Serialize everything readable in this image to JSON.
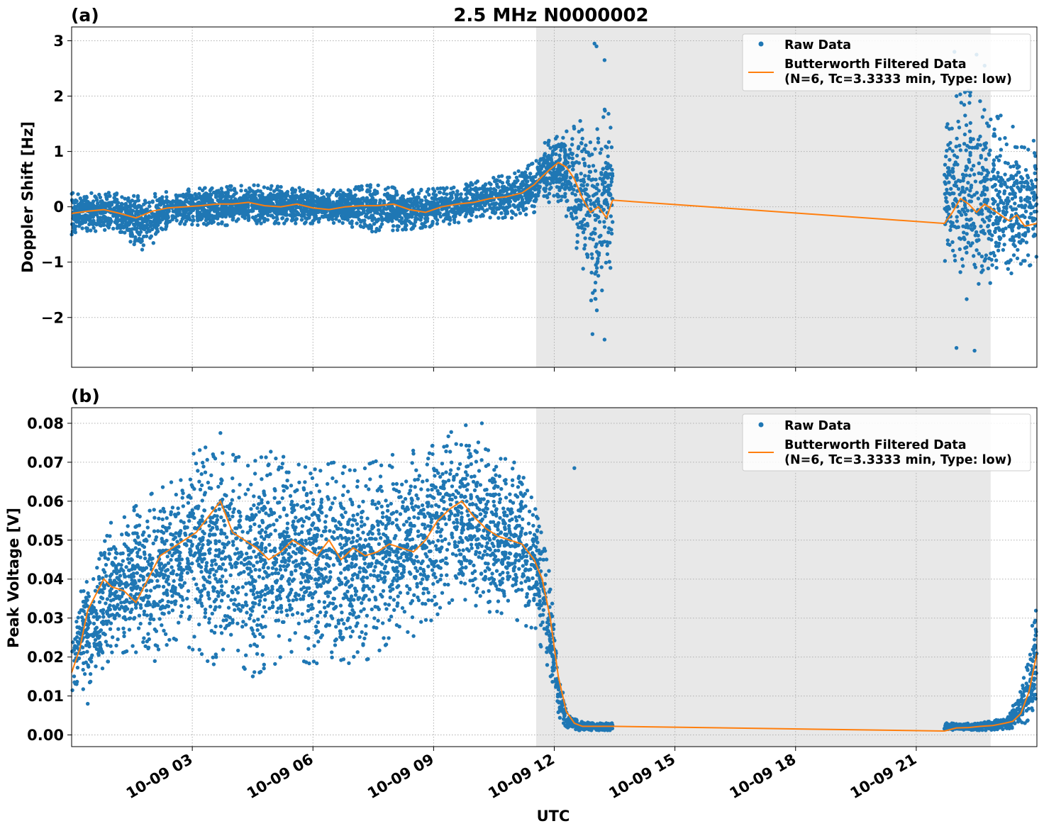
{
  "figure": {
    "title": "2.5 MHz N0000002",
    "xlabel": "UTC",
    "x_tick_labels": [
      "10-09 03",
      "10-09 06",
      "10-09 09",
      "10-09 12",
      "10-09 15",
      "10-09 18",
      "10-09 21"
    ]
  },
  "colors": {
    "raw": "#1f77b4",
    "filtered": "#ff7f0e",
    "shade": "#e8e8e8",
    "grid": "#b0b0b0"
  },
  "legend": {
    "raw_label": "Raw Data",
    "filtered_label_line1": "Butterworth Filtered Data",
    "filtered_label_line2": "(N=6, Tc=3.3333 min, Type: low)",
    "placement": "top-right"
  },
  "chart_data": [
    {
      "type": "scatter",
      "panel_label": "(a)",
      "ylabel": "Doppler Shift [Hz]",
      "xlim": [
        0.0,
        24.0
      ],
      "ylim": [
        -2.9,
        3.25
      ],
      "yticks": [
        -2,
        -1,
        0,
        1,
        2,
        3
      ],
      "ytick_labels": [
        "−2",
        "−1",
        "0",
        "1",
        "2",
        "3"
      ],
      "xticks": [
        3,
        6,
        9,
        12,
        15,
        18,
        21
      ],
      "grid": true,
      "shaded_span": [
        11.55,
        22.85
      ],
      "data_gap": [
        13.45,
        21.7
      ],
      "series": [
        {
          "name": "Raw Data",
          "kind": "points",
          "envelope": {
            "x": [
              0.0,
              1.0,
              1.8,
              2.6,
              3.5,
              4.5,
              5.5,
              6.5,
              7.5,
              8.5,
              9.5,
              10.3,
              11.0,
              11.5,
              11.8,
              12.2,
              12.5,
              12.8,
              13.0,
              13.2,
              13.45,
              21.7,
              22.0,
              22.3,
              22.6,
              22.9,
              23.3,
              23.7,
              24.0
            ],
            "lower": [
              -0.5,
              -0.4,
              -0.8,
              -0.3,
              -0.35,
              -0.3,
              -0.3,
              -0.3,
              -0.45,
              -0.4,
              -0.3,
              -0.2,
              -0.2,
              -0.1,
              0.1,
              0.0,
              -0.6,
              -1.4,
              -1.9,
              -1.8,
              -1.0,
              -1.2,
              -1.5,
              -1.7,
              -1.6,
              -1.5,
              -1.3,
              -1.1,
              -1.0
            ],
            "upper": [
              0.3,
              0.25,
              0.2,
              0.3,
              0.35,
              0.4,
              0.35,
              0.3,
              0.4,
              0.3,
              0.35,
              0.5,
              0.6,
              0.8,
              1.2,
              1.3,
              1.5,
              1.7,
              1.9,
              1.8,
              1.6,
              1.8,
              2.0,
              2.1,
              1.9,
              1.8,
              1.5,
              1.3,
              1.2
            ]
          },
          "outliers": [
            [
              13.0,
              2.95
            ],
            [
              13.05,
              2.9
            ],
            [
              13.25,
              2.65
            ],
            [
              12.95,
              -2.3
            ],
            [
              13.25,
              -2.4
            ],
            [
              22.0,
              -2.55
            ],
            [
              22.45,
              -2.6
            ],
            [
              22.7,
              2.55
            ],
            [
              21.95,
              2.8
            ],
            [
              22.5,
              2.75
            ]
          ]
        },
        {
          "name": "Butterworth Filtered Data",
          "kind": "line",
          "x": [
            0.0,
            0.4,
            0.8,
            1.2,
            1.6,
            2.0,
            2.4,
            2.8,
            3.2,
            3.6,
            4.0,
            4.4,
            4.8,
            5.2,
            5.6,
            6.0,
            6.4,
            6.8,
            7.2,
            7.6,
            8.0,
            8.4,
            8.8,
            9.2,
            9.6,
            10.0,
            10.4,
            10.8,
            11.2,
            11.5,
            11.7,
            11.9,
            12.1,
            12.3,
            12.5,
            12.7,
            12.9,
            13.1,
            13.3,
            13.45,
            21.7,
            21.9,
            22.1,
            22.3,
            22.5,
            22.7,
            22.9,
            23.1,
            23.3,
            23.5,
            23.7,
            24.0
          ],
          "y": [
            -0.12,
            -0.08,
            -0.05,
            -0.12,
            -0.2,
            -0.08,
            -0.02,
            0.0,
            0.02,
            0.05,
            0.05,
            0.08,
            0.02,
            0.0,
            0.05,
            -0.02,
            -0.05,
            0.0,
            0.02,
            0.02,
            0.05,
            -0.05,
            -0.1,
            0.0,
            0.05,
            0.08,
            0.15,
            0.18,
            0.25,
            0.4,
            0.55,
            0.68,
            0.8,
            0.72,
            0.5,
            0.15,
            -0.1,
            0.0,
            -0.2,
            0.12,
            -0.3,
            -0.1,
            0.15,
            0.05,
            -0.1,
            0.05,
            -0.05,
            -0.15,
            -0.25,
            -0.15,
            -0.35,
            -0.3
          ]
        }
      ]
    },
    {
      "type": "scatter",
      "panel_label": "(b)",
      "ylabel": "Peak Voltage [V]",
      "xlim": [
        0.0,
        24.0
      ],
      "ylim": [
        -0.003,
        0.084
      ],
      "yticks": [
        0.0,
        0.01,
        0.02,
        0.03,
        0.04,
        0.05,
        0.06,
        0.07,
        0.08
      ],
      "ytick_labels": [
        "0.00",
        "0.01",
        "0.02",
        "0.03",
        "0.04",
        "0.05",
        "0.06",
        "0.07",
        "0.08"
      ],
      "xticks": [
        3,
        6,
        9,
        12,
        15,
        18,
        21
      ],
      "grid": true,
      "shaded_span": [
        11.55,
        22.85
      ],
      "data_gap": [
        13.45,
        21.7
      ],
      "series": [
        {
          "name": "Raw Data",
          "kind": "points",
          "envelope": {
            "x": [
              0.0,
              0.3,
              0.6,
              1.0,
              1.5,
              2.0,
              2.5,
              3.0,
              3.5,
              4.0,
              4.5,
              5.0,
              5.5,
              6.0,
              6.5,
              7.0,
              7.5,
              8.0,
              8.5,
              9.0,
              9.5,
              10.0,
              10.5,
              11.0,
              11.3,
              11.6,
              11.9,
              12.1,
              12.3,
              12.6,
              13.0,
              13.45,
              21.7,
              22.3,
              22.9,
              23.3,
              23.6,
              23.8,
              24.0
            ],
            "lower": [
              0.006,
              0.012,
              0.015,
              0.02,
              0.022,
              0.018,
              0.025,
              0.022,
              0.018,
              0.02,
              0.015,
              0.018,
              0.02,
              0.018,
              0.02,
              0.018,
              0.02,
              0.025,
              0.025,
              0.03,
              0.035,
              0.03,
              0.032,
              0.03,
              0.028,
              0.025,
              0.015,
              0.005,
              0.002,
              0.0012,
              0.0012,
              0.0012,
              0.0012,
              0.0012,
              0.0012,
              0.0015,
              0.002,
              0.004,
              0.008
            ],
            "upper": [
              0.03,
              0.04,
              0.045,
              0.055,
              0.058,
              0.062,
              0.065,
              0.072,
              0.075,
              0.072,
              0.07,
              0.073,
              0.07,
              0.068,
              0.07,
              0.068,
              0.07,
              0.072,
              0.073,
              0.076,
              0.078,
              0.076,
              0.072,
              0.07,
              0.065,
              0.06,
              0.04,
              0.02,
              0.006,
              0.0035,
              0.003,
              0.003,
              0.003,
              0.003,
              0.0035,
              0.005,
              0.012,
              0.022,
              0.036
            ]
          },
          "outliers": [
            [
              9.8,
              0.0795
            ],
            [
              10.2,
              0.08
            ],
            [
              3.7,
              0.0775
            ],
            [
              0.4,
              0.008
            ],
            [
              12.5,
              0.0685
            ]
          ]
        },
        {
          "name": "Butterworth Filtered Data",
          "kind": "line",
          "x": [
            0.0,
            0.2,
            0.4,
            0.6,
            0.8,
            1.0,
            1.3,
            1.6,
            1.9,
            2.2,
            2.5,
            2.8,
            3.1,
            3.4,
            3.7,
            4.0,
            4.3,
            4.6,
            4.9,
            5.2,
            5.5,
            5.8,
            6.1,
            6.4,
            6.7,
            7.0,
            7.3,
            7.6,
            7.9,
            8.2,
            8.5,
            8.8,
            9.1,
            9.4,
            9.7,
            10.0,
            10.3,
            10.6,
            10.9,
            11.2,
            11.5,
            11.7,
            11.9,
            12.1,
            12.3,
            12.5,
            12.7,
            13.0,
            13.45,
            21.7,
            22.0,
            22.3,
            22.6,
            22.9,
            23.2,
            23.4,
            23.6,
            23.8,
            24.0
          ],
          "y": [
            0.016,
            0.022,
            0.032,
            0.036,
            0.04,
            0.038,
            0.037,
            0.034,
            0.04,
            0.046,
            0.048,
            0.05,
            0.052,
            0.056,
            0.06,
            0.052,
            0.05,
            0.048,
            0.045,
            0.047,
            0.05,
            0.048,
            0.046,
            0.05,
            0.045,
            0.048,
            0.046,
            0.047,
            0.049,
            0.048,
            0.047,
            0.05,
            0.055,
            0.058,
            0.06,
            0.056,
            0.053,
            0.051,
            0.05,
            0.049,
            0.045,
            0.04,
            0.03,
            0.015,
            0.006,
            0.003,
            0.0022,
            0.0022,
            0.0022,
            0.001,
            0.0018,
            0.0019,
            0.0022,
            0.0024,
            0.003,
            0.0035,
            0.0055,
            0.011,
            0.021
          ]
        }
      ]
    }
  ]
}
